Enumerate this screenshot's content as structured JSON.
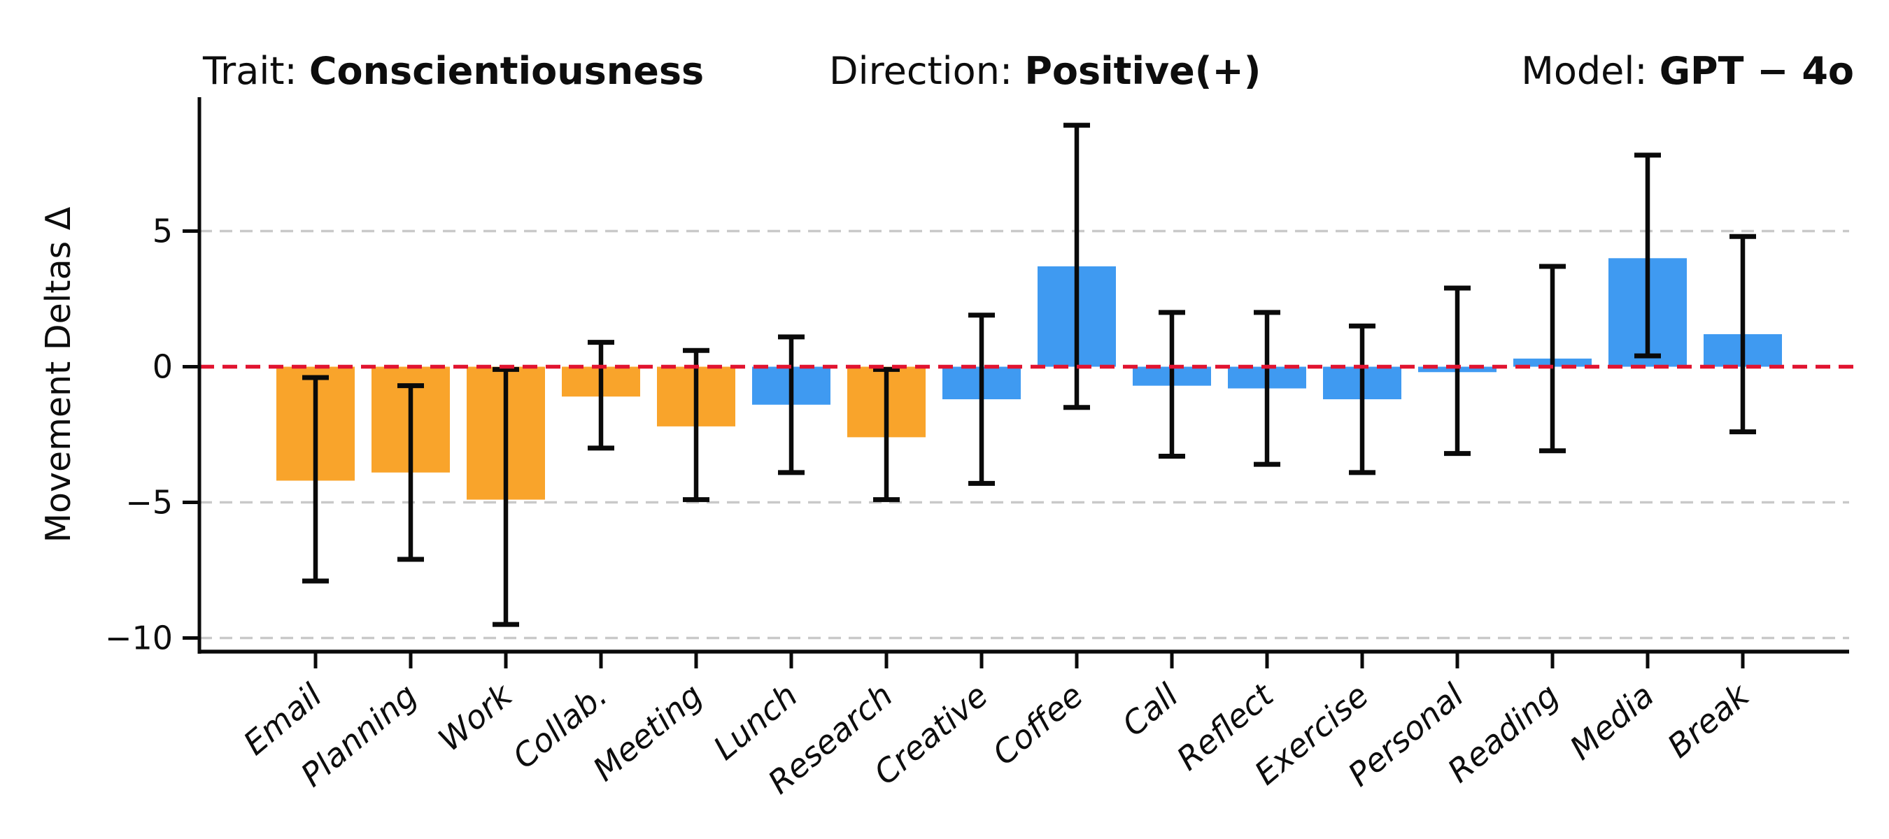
{
  "header": {
    "trait_label": "Trait: ",
    "trait_value": "Conscientiousness",
    "direction_label": "Direction: ",
    "direction_value": "Positive(+)",
    "model_label": "Model: ",
    "model_value": "GPT − 4o"
  },
  "chart_data": {
    "type": "bar",
    "title": "Trait: Conscientiousness    Direction: Positive(+)    Model: GPT − 4o",
    "xlabel": "",
    "ylabel": "Movement Deltas Δ",
    "categories": [
      "Email",
      "Planning",
      "Work",
      "Collab.",
      "Meeting",
      "Lunch",
      "Research",
      "Creative",
      "Coffee",
      "Call",
      "Reflect",
      "Exercise",
      "Personal",
      "Reading",
      "Media",
      "Break"
    ],
    "values": [
      -4.2,
      -3.9,
      -4.9,
      -1.1,
      -2.2,
      -1.4,
      -2.6,
      -1.2,
      3.7,
      -0.7,
      -0.8,
      -1.2,
      -0.2,
      0.3,
      4.0,
      1.2
    ],
    "error_high": [
      -0.4,
      -0.7,
      -0.1,
      0.9,
      0.6,
      1.1,
      -0.1,
      1.9,
      8.9,
      2.0,
      2.0,
      1.5,
      2.9,
      3.7,
      7.8,
      4.8
    ],
    "error_low": [
      -7.9,
      -7.1,
      -9.5,
      -3.0,
      -4.9,
      -3.9,
      -4.9,
      -4.3,
      -1.5,
      -3.3,
      -3.6,
      -3.9,
      -3.2,
      -3.1,
      0.4,
      -2.4
    ],
    "bar_colors": [
      "orange",
      "orange",
      "orange",
      "orange",
      "orange",
      "blue",
      "orange",
      "blue",
      "blue",
      "blue",
      "blue",
      "blue",
      "blue",
      "blue",
      "blue",
      "blue"
    ],
    "color_hex": {
      "orange": "#F9A42B",
      "blue": "#3F9AF1"
    },
    "error_bar_color": "#0a0a0a",
    "zero_line_color": "#E11430",
    "grid_color": "#c9c9c9",
    "grid_values": [
      5,
      -5,
      -10
    ],
    "yticks": [
      5,
      0,
      -5,
      -10
    ],
    "ylim": [
      -10.5,
      9.9
    ],
    "grid": "horizontal dashed gridlines at 5, -5, -10; red dashed reference line at 0",
    "legend": "none"
  }
}
